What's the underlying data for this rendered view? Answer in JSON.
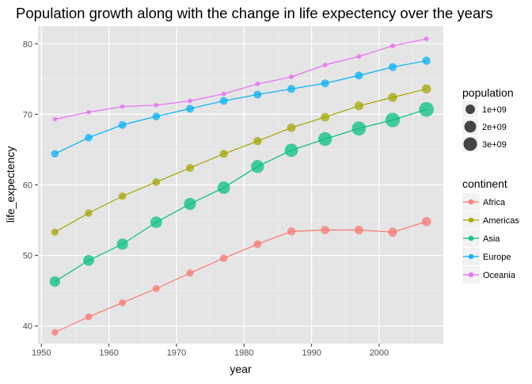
{
  "chart_data": {
    "type": "line",
    "title": "Population growth along with the change in life expectency over the years",
    "xlabel": "year",
    "ylabel": "life_expectency",
    "xlim": [
      1949.5,
      2009.5
    ],
    "ylim": [
      37.5,
      82.5
    ],
    "xticks": [
      1950,
      1960,
      1970,
      1980,
      1990,
      2000
    ],
    "yticks": [
      40,
      50,
      60,
      70,
      80
    ],
    "grid": true,
    "panel_background": "#e5e5e5",
    "x": [
      1952,
      1957,
      1962,
      1967,
      1972,
      1977,
      1982,
      1987,
      1992,
      1997,
      2002,
      2007
    ],
    "series": [
      {
        "name": "Africa",
        "color": "#F8766D",
        "values": [
          39.1,
          41.3,
          43.3,
          45.3,
          47.5,
          49.6,
          51.6,
          53.4,
          53.6,
          53.6,
          53.3,
          54.8
        ],
        "population": [
          237000000,
          265000000,
          297000000,
          335000000,
          378000000,
          434000000,
          500000000,
          575000000,
          659000000,
          743000000,
          834000000,
          930000000
        ]
      },
      {
        "name": "Americas",
        "color": "#A3A500",
        "values": [
          53.3,
          56.0,
          58.4,
          60.4,
          62.4,
          64.4,
          66.2,
          68.1,
          69.6,
          71.2,
          72.4,
          73.6
        ],
        "population": [
          345000000,
          387000000,
          433000000,
          481000000,
          529000000,
          579000000,
          630000000,
          683000000,
          739000000,
          797000000,
          849000000,
          899000000
        ]
      },
      {
        "name": "Asia",
        "color": "#00BF7D",
        "values": [
          46.3,
          49.3,
          51.6,
          54.7,
          57.3,
          59.6,
          62.6,
          64.9,
          66.5,
          68.0,
          69.2,
          70.7
        ],
        "population": [
          1395000000,
          1563000000,
          1696000000,
          1906000000,
          2150000000,
          2385000000,
          2610000000,
          2871000000,
          3133000000,
          3383000000,
          3601000000,
          3812000000
        ]
      },
      {
        "name": "Europe",
        "color": "#00B0F6",
        "values": [
          64.4,
          66.7,
          68.5,
          69.7,
          70.8,
          71.9,
          72.8,
          73.6,
          74.4,
          75.5,
          76.7,
          77.6
        ],
        "population": [
          418000000,
          438000000,
          460000000,
          481000000,
          500000000,
          513000000,
          525000000,
          535000000,
          545000000,
          552000000,
          557000000,
          586000000
        ]
      },
      {
        "name": "Oceania",
        "color": "#E76BF3",
        "values": [
          69.3,
          70.3,
          71.1,
          71.3,
          71.9,
          72.9,
          74.3,
          75.3,
          77.0,
          78.2,
          79.7,
          80.7
        ],
        "population": [
          10700000,
          11900000,
          13000000,
          14400000,
          16100000,
          17300000,
          18500000,
          19700000,
          21000000,
          22200000,
          23500000,
          24500000
        ]
      }
    ],
    "legend_size": {
      "title": "population",
      "entries": [
        {
          "label": "1e+09",
          "value": 1000000000
        },
        {
          "label": "2e+09",
          "value": 2000000000
        },
        {
          "label": "3e+09",
          "value": 3000000000
        }
      ]
    },
    "legend_color": {
      "title": "continent",
      "entries": [
        "Africa",
        "Americas",
        "Asia",
        "Europe",
        "Oceania"
      ]
    },
    "legend_placement": "right"
  }
}
